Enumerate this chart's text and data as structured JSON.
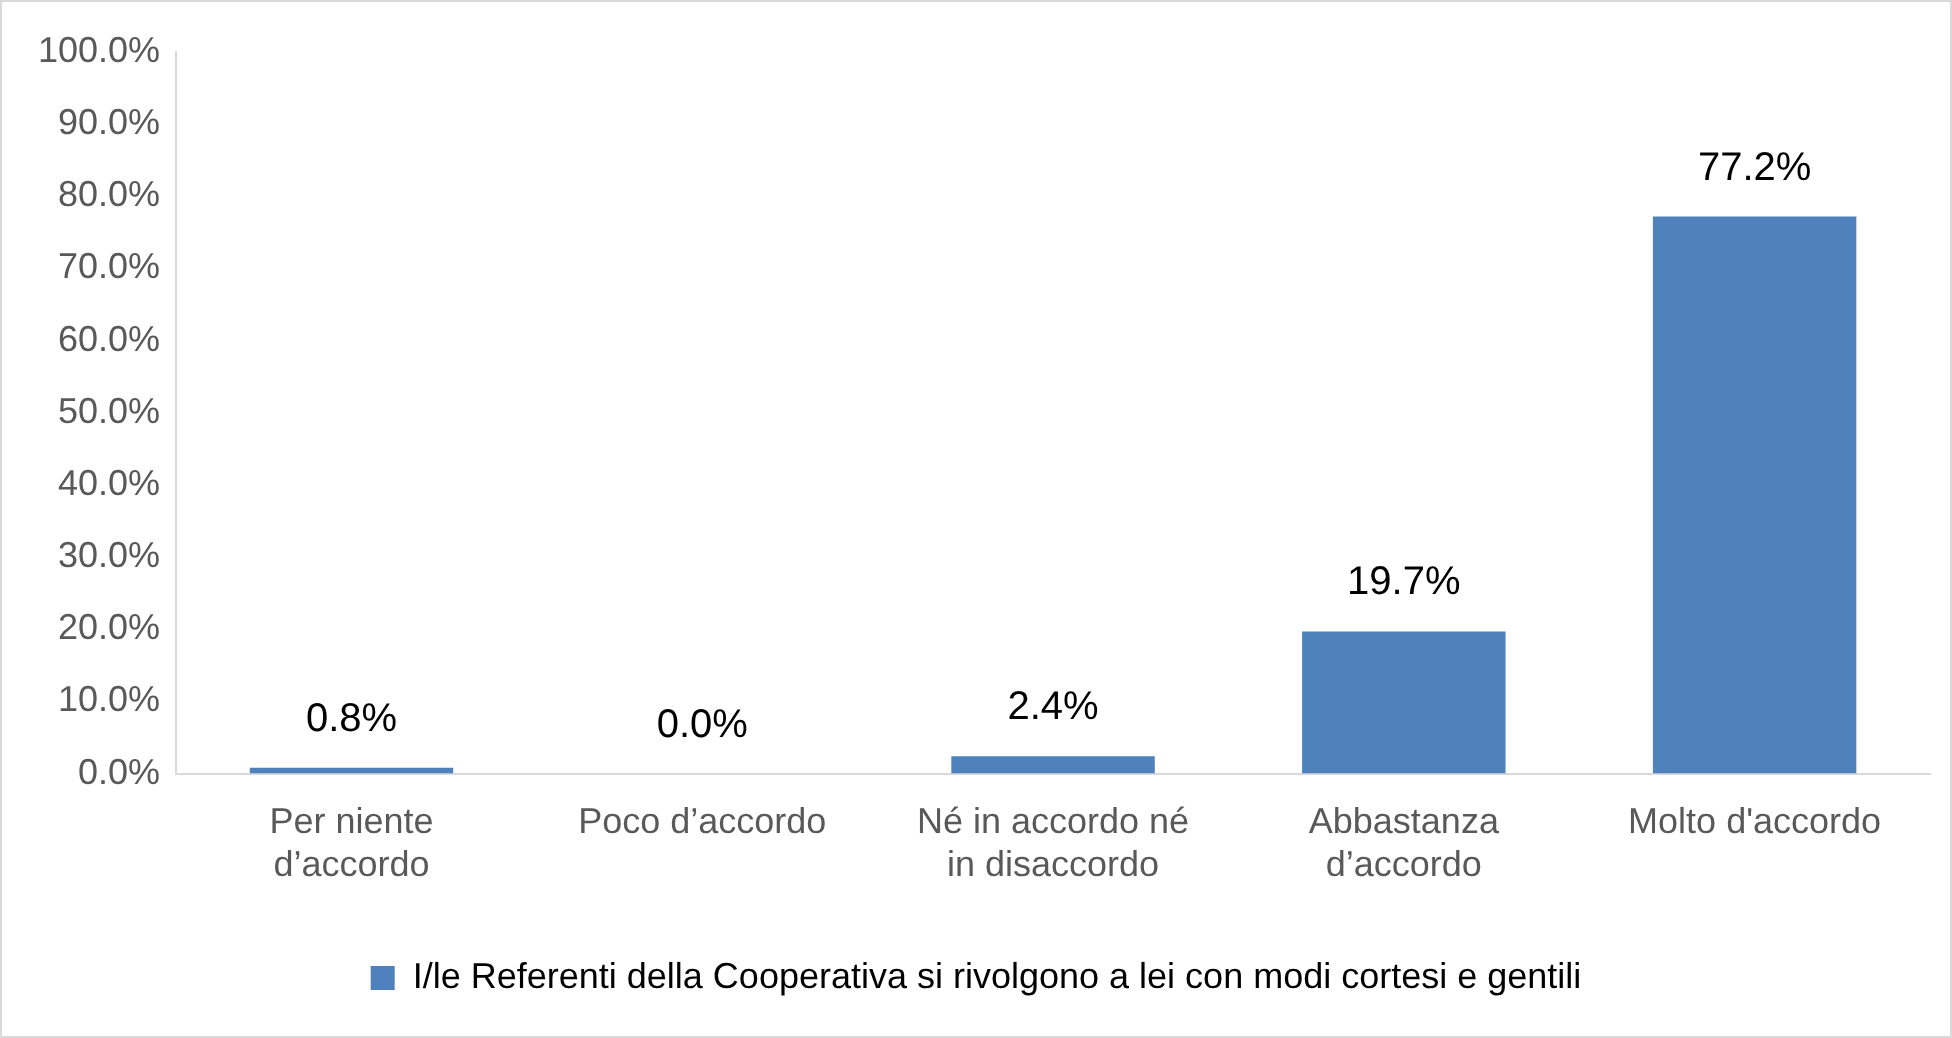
{
  "chart_data": {
    "type": "bar",
    "categories": [
      "Per niente d’accordo",
      "Poco d’accordo",
      "Né in accordo né in disaccordo",
      "Abbastanza d’accordo",
      "Molto d'accordo"
    ],
    "series": [
      {
        "name": "I/le Referenti della Cooperativa si rivolgono a lei con modi cortesi e gentili",
        "color": "#4f81bd",
        "values": [
          0.8,
          0.0,
          2.4,
          19.7,
          77.2
        ],
        "value_labels": [
          "0.8%",
          "0.0%",
          "2.4%",
          "19.7%",
          "77.2%"
        ]
      }
    ],
    "ylim": [
      0,
      100
    ],
    "yticks": [
      {
        "value": 0,
        "label": "0.0%"
      },
      {
        "value": 10,
        "label": "10.0%"
      },
      {
        "value": 20,
        "label": "20.0%"
      },
      {
        "value": 30,
        "label": "30.0%"
      },
      {
        "value": 40,
        "label": "40.0%"
      },
      {
        "value": 50,
        "label": "50.0%"
      },
      {
        "value": 60,
        "label": "60.0%"
      },
      {
        "value": 70,
        "label": "70.0%"
      },
      {
        "value": 80,
        "label": "80.0%"
      },
      {
        "value": 90,
        "label": "90.0%"
      },
      {
        "value": 100,
        "label": "100.0%"
      }
    ],
    "grid": false,
    "legend": "bottom"
  }
}
